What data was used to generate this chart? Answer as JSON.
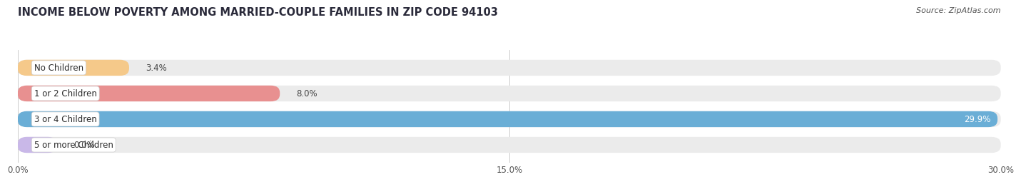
{
  "title": "INCOME BELOW POVERTY AMONG MARRIED-COUPLE FAMILIES IN ZIP CODE 94103",
  "source": "Source: ZipAtlas.com",
  "categories": [
    "No Children",
    "1 or 2 Children",
    "3 or 4 Children",
    "5 or more Children"
  ],
  "values": [
    3.4,
    8.0,
    29.9,
    0.0
  ],
  "bar_colors": [
    "#f5c98a",
    "#e89090",
    "#6aaed6",
    "#c9b8e8"
  ],
  "bg_bar_color": "#ebebeb",
  "x_max": 30.0,
  "x_ticks": [
    0.0,
    15.0,
    30.0
  ],
  "x_tick_labels": [
    "0.0%",
    "15.0%",
    "30.0%"
  ],
  "title_fontsize": 10.5,
  "source_fontsize": 8,
  "label_fontsize": 8.5,
  "value_fontsize": 8.5,
  "figure_width": 14.06,
  "figure_height": 2.32,
  "background_color": "#ffffff",
  "small_bar_min": 1.2
}
